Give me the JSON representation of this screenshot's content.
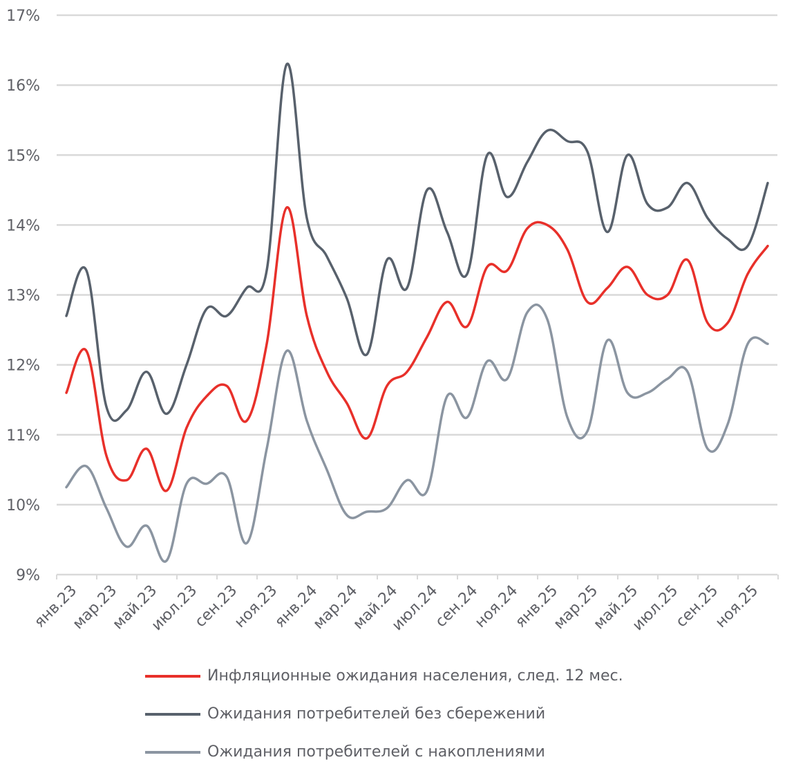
{
  "chart_data": {
    "type": "line",
    "title": "",
    "xlabel": "",
    "ylabel": "",
    "ylim": [
      9,
      17
    ],
    "yticks": [
      "9%",
      "10%",
      "11%",
      "12%",
      "13%",
      "14%",
      "15%",
      "16%",
      "17%"
    ],
    "x_tick_labels": [
      "янв.23",
      "мар.23",
      "май.23",
      "июл.23",
      "сен.23",
      "ноя.23",
      "янв.24",
      "мар.24",
      "май.24",
      "июл.24",
      "сен.24",
      "ноя.24",
      "янв.25",
      "мар.25",
      "май.25",
      "июл.25",
      "сен.25",
      "ноя.25"
    ],
    "x": [
      "янв.23",
      "фев.23",
      "мар.23",
      "апр.23",
      "май.23",
      "июн.23",
      "июл.23",
      "авг.23",
      "сен.23",
      "окт.23",
      "ноя.23",
      "дек.23",
      "янв.24",
      "фев.24",
      "мар.24",
      "апр.24",
      "май.24",
      "июн.24",
      "июл.24",
      "авг.24",
      "сен.24",
      "окт.24",
      "ноя.24",
      "дек.24",
      "янв.25",
      "фев.25",
      "мар.25",
      "апр.25",
      "май.25",
      "июн.25",
      "июл.25",
      "авг.25",
      "сен.25",
      "окт.25",
      "ноя.25",
      "дек.25"
    ],
    "series": [
      {
        "name": "Инфляционные ожидания населения, след. 12 мес.",
        "color": "#e8302a",
        "values": [
          11.6,
          12.2,
          10.7,
          10.35,
          10.8,
          10.2,
          11.1,
          11.55,
          11.7,
          11.2,
          12.3,
          14.25,
          12.7,
          11.9,
          11.45,
          10.95,
          11.7,
          11.9,
          12.4,
          12.9,
          12.55,
          13.4,
          13.35,
          13.95,
          14.0,
          13.65,
          12.9,
          13.1,
          13.4,
          13.0,
          13.0,
          13.5,
          12.6,
          12.6,
          13.3,
          13.7
        ]
      },
      {
        "name": "Ожидания потребителей без сбережений",
        "color": "#58616c",
        "values": [
          12.7,
          13.35,
          11.4,
          11.35,
          11.9,
          11.3,
          12.0,
          12.8,
          12.7,
          13.1,
          13.35,
          16.3,
          14.1,
          13.55,
          12.95,
          12.15,
          13.5,
          13.1,
          14.5,
          13.9,
          13.3,
          15.0,
          14.4,
          14.9,
          15.35,
          15.2,
          15.05,
          13.9,
          15.0,
          14.3,
          14.25,
          14.6,
          14.1,
          13.8,
          13.7,
          14.6
        ]
      },
      {
        "name": "Ожидания потребителей с накоплениями",
        "color": "#8b95a1",
        "values": [
          10.25,
          10.55,
          9.95,
          9.4,
          9.7,
          9.2,
          10.3,
          10.3,
          10.4,
          9.45,
          10.8,
          12.2,
          11.2,
          10.5,
          9.85,
          9.9,
          9.95,
          10.35,
          10.2,
          11.55,
          11.25,
          12.05,
          11.8,
          12.75,
          12.65,
          11.25,
          11.05,
          12.35,
          11.6,
          11.6,
          11.8,
          11.9,
          10.8,
          11.15,
          12.3,
          12.3
        ]
      }
    ],
    "legend": "bottom"
  }
}
